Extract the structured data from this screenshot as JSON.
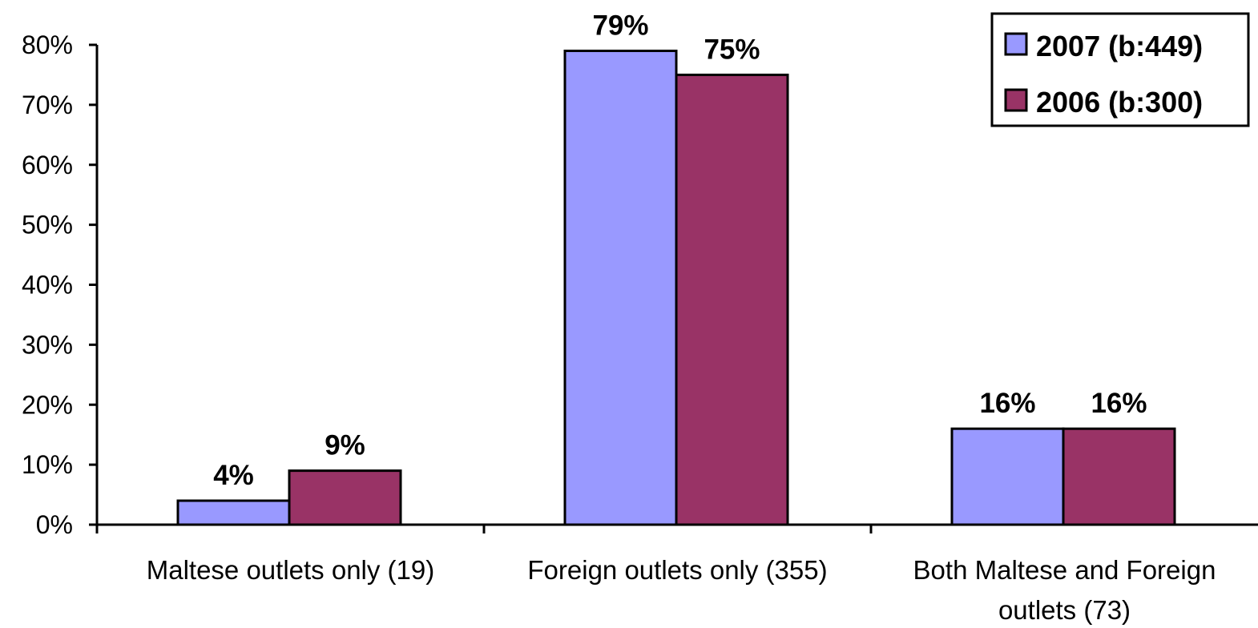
{
  "chart_data": {
    "type": "bar",
    "categories": [
      [
        "Maltese outlets only (19)"
      ],
      [
        "Foreign outlets only (355)"
      ],
      [
        "Both Maltese and Foreign",
        "outlets (73)"
      ]
    ],
    "series": [
      {
        "name": "2007 (b:449)",
        "color": "#9999ff",
        "values": [
          4,
          79,
          16
        ],
        "labels": [
          "4%",
          "79%",
          "16%"
        ]
      },
      {
        "name": "2006 (b:300)",
        "color": "#993366",
        "values": [
          9,
          75,
          16
        ],
        "labels": [
          "9%",
          "75%",
          "16%"
        ]
      }
    ],
    "yticks": [
      "0%",
      "10%",
      "20%",
      "30%",
      "40%",
      "50%",
      "60%",
      "70%",
      "80%"
    ],
    "ylim": [
      0,
      80
    ],
    "title": "",
    "xlabel": "",
    "ylabel": "",
    "legend_position": "top-right",
    "grid": false
  }
}
